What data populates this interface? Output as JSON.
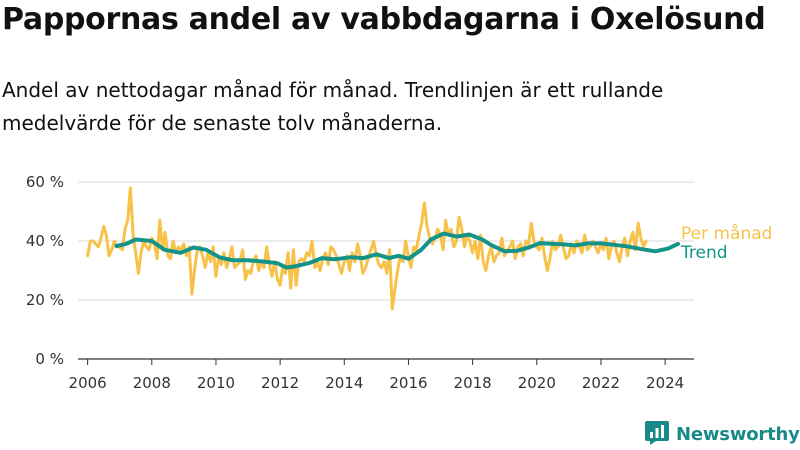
{
  "header": {
    "title": "Pappornas andel av vabbdagarna i Oxelösund",
    "subtitle": "Andel av nettodagar månad för månad. Trendlinjen är ett rullande medelvärde för de senaste tolv månaderna."
  },
  "brand": {
    "name": "Newsworthy",
    "icon": "newsworthy-logo-icon",
    "color": "#1a8a89"
  },
  "chart_data": {
    "type": "line",
    "title": "Pappornas andel av vabbdagarna i Oxelösund",
    "subtitle": "Andel av nettodagar månad för månad. Trendlinjen är ett rullande medelvärde för de senaste tolv månaderna.",
    "xlabel": "",
    "ylabel": "",
    "xlim": [
      2005.7,
      2024.9
    ],
    "ylim": [
      0,
      60
    ],
    "x_ticks": [
      2006,
      2008,
      2010,
      2012,
      2014,
      2016,
      2018,
      2020,
      2022,
      2024
    ],
    "y_ticks": [
      {
        "value": 0,
        "label": "0 %"
      },
      {
        "value": 20,
        "label": "20 %"
      },
      {
        "value": 40,
        "label": "40 %"
      },
      {
        "value": 60,
        "label": "60 %"
      }
    ],
    "grid": "horizontal",
    "legend": "inline-right",
    "series": [
      {
        "name": "Per månad",
        "color": "#f8c24a",
        "x_start": 2006.0,
        "x_step": 0.0833,
        "values": [
          35,
          40,
          40,
          39,
          38,
          41,
          45,
          42,
          35,
          37,
          40,
          38,
          38,
          37,
          44,
          47,
          58,
          42,
          36,
          29,
          36,
          40,
          38,
          37,
          41,
          39,
          34,
          47,
          37,
          43,
          35,
          34,
          40,
          36,
          38,
          37,
          39,
          35,
          38,
          22,
          30,
          37,
          38,
          35,
          31,
          36,
          33,
          38,
          28,
          34,
          32,
          36,
          31,
          34,
          38,
          31,
          32,
          33,
          37,
          27,
          30,
          29,
          33,
          35,
          30,
          33,
          31,
          38,
          32,
          28,
          33,
          27,
          25,
          31,
          29,
          36,
          24,
          37,
          25,
          33,
          34,
          33,
          36,
          35,
          40,
          31,
          33,
          30,
          34,
          36,
          32,
          38,
          37,
          35,
          32,
          29,
          33,
          35,
          30,
          36,
          33,
          39,
          35,
          29,
          31,
          34,
          37,
          40,
          35,
          32,
          31,
          33,
          29,
          37,
          17,
          24,
          30,
          35,
          33,
          40,
          35,
          31,
          38,
          37,
          42,
          46,
          53,
          45,
          41,
          39,
          41,
          44,
          42,
          37,
          47,
          42,
          44,
          38,
          40,
          48,
          44,
          38,
          42,
          40,
          36,
          40,
          34,
          42,
          33,
          30,
          35,
          38,
          33,
          35,
          36,
          41,
          35,
          37,
          38,
          40,
          34,
          38,
          39,
          35,
          40,
          39,
          46,
          40,
          38,
          37,
          41,
          35,
          30,
          34,
          40,
          37,
          38,
          42,
          38,
          34,
          35,
          39,
          36,
          40,
          38,
          36,
          42,
          37,
          38,
          40,
          38,
          36,
          39,
          37,
          41,
          34,
          38,
          40,
          36,
          33,
          38,
          41,
          35,
          40,
          43,
          37,
          46,
          41,
          38,
          40
        ]
      },
      {
        "name": "Trend",
        "color": "#149389",
        "points": [
          [
            2006.9,
            38.3
          ],
          [
            2007.2,
            39
          ],
          [
            2007.5,
            40.5
          ],
          [
            2008.0,
            40
          ],
          [
            2008.4,
            37
          ],
          [
            2008.9,
            36
          ],
          [
            2009.3,
            37.8
          ],
          [
            2009.7,
            37
          ],
          [
            2010.1,
            34.5
          ],
          [
            2010.5,
            33.5
          ],
          [
            2011.0,
            33.5
          ],
          [
            2011.5,
            33
          ],
          [
            2011.9,
            32.5
          ],
          [
            2012.2,
            31
          ],
          [
            2012.5,
            31.5
          ],
          [
            2012.9,
            32.5
          ],
          [
            2013.3,
            34.2
          ],
          [
            2013.7,
            33.8
          ],
          [
            2014.2,
            34.5
          ],
          [
            2014.6,
            34.2
          ],
          [
            2015.0,
            35.5
          ],
          [
            2015.4,
            34.2
          ],
          [
            2015.7,
            35
          ],
          [
            2016.0,
            34
          ],
          [
            2016.4,
            37
          ],
          [
            2016.7,
            40.5
          ],
          [
            2017.1,
            42.5
          ],
          [
            2017.5,
            41.5
          ],
          [
            2017.9,
            42.2
          ],
          [
            2018.3,
            40.5
          ],
          [
            2018.6,
            38.5
          ],
          [
            2019.0,
            36.5
          ],
          [
            2019.4,
            36.7
          ],
          [
            2019.8,
            38
          ],
          [
            2020.1,
            39.3
          ],
          [
            2020.5,
            39
          ],
          [
            2020.9,
            38.8
          ],
          [
            2021.2,
            38.5
          ],
          [
            2021.6,
            39.2
          ],
          [
            2022.0,
            39.2
          ],
          [
            2022.4,
            38.7
          ],
          [
            2022.8,
            38.2
          ],
          [
            2023.3,
            37.2
          ],
          [
            2023.7,
            36.5
          ],
          [
            2024.1,
            37.5
          ],
          [
            2024.4,
            39
          ]
        ]
      }
    ]
  }
}
